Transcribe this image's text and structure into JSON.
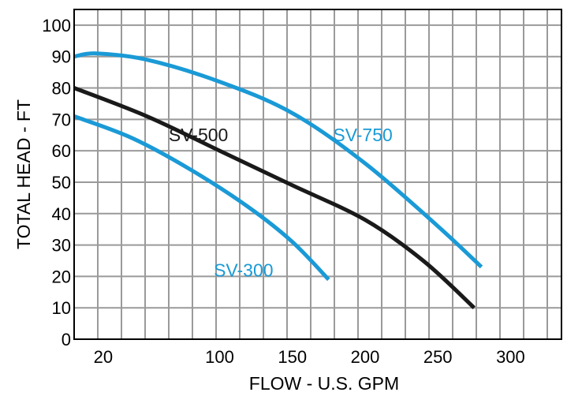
{
  "chart_data": {
    "type": "line",
    "xlabel": "FLOW - U.S. GPM",
    "ylabel": "TOTAL HEAD - FT",
    "xlim": [
      0,
      335
    ],
    "ylim": [
      0,
      105
    ],
    "x_ticks": [
      {
        "value": 20,
        "label": "20"
      },
      {
        "value": 100,
        "label": "100"
      },
      {
        "value": 150,
        "label": "150"
      },
      {
        "value": 200,
        "label": "200"
      },
      {
        "value": 250,
        "label": "250"
      },
      {
        "value": 300,
        "label": "300"
      }
    ],
    "y_ticks": [
      {
        "value": 0,
        "label": "0"
      },
      {
        "value": 10,
        "label": "10"
      },
      {
        "value": 20,
        "label": "20"
      },
      {
        "value": 30,
        "label": "30"
      },
      {
        "value": 40,
        "label": "40"
      },
      {
        "value": 50,
        "label": "50"
      },
      {
        "value": 60,
        "label": "60"
      },
      {
        "value": 70,
        "label": "70"
      },
      {
        "value": 80,
        "label": "80"
      },
      {
        "value": 90,
        "label": "90"
      },
      {
        "value": 100,
        "label": "100"
      }
    ],
    "grid": true,
    "series": [
      {
        "name": "SV-750",
        "color": "#1a9ad6",
        "x": [
          0,
          15,
          50,
          100,
          150,
          200,
          250,
          280
        ],
        "y": [
          90,
          91,
          89,
          82,
          72,
          56,
          36,
          23
        ],
        "label_at": [
          178,
          65
        ]
      },
      {
        "name": "SV-500",
        "color": "#1a1a1a",
        "x": [
          0,
          50,
          100,
          150,
          200,
          240,
          275
        ],
        "y": [
          80,
          71,
          60,
          49,
          38,
          25,
          10
        ],
        "label_at": [
          65,
          65
        ]
      },
      {
        "name": "SV-300",
        "color": "#1a9ad6",
        "x": [
          0,
          40,
          80,
          120,
          150,
          175
        ],
        "y": [
          71,
          64,
          54,
          42,
          31,
          19
        ],
        "label_at": [
          96,
          22
        ]
      }
    ]
  }
}
